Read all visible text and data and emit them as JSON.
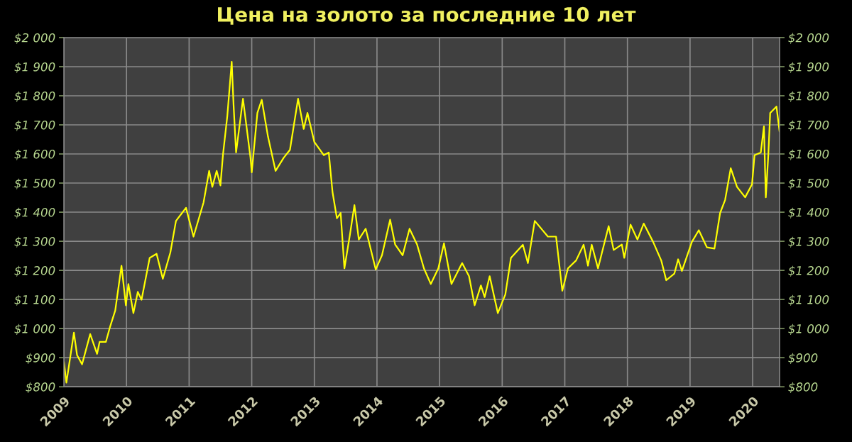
{
  "chart_data": {
    "type": "line",
    "title": "Цена на золото за последние 10 лет",
    "series": [
      {
        "color": "#ffff00",
        "x": [
          2009.0,
          2009.04,
          2009.16,
          2009.21,
          2009.29,
          2009.42,
          2009.53,
          2009.57,
          2009.67,
          2009.74,
          2009.82,
          2009.92,
          2009.99,
          2010.03,
          2010.11,
          2010.18,
          2010.24,
          2010.37,
          2010.48,
          2010.58,
          2010.7,
          2010.79,
          2010.95,
          2011.07,
          2011.23,
          2011.32,
          2011.37,
          2011.44,
          2011.5,
          2011.54,
          2011.61,
          2011.68,
          2011.71,
          2011.75,
          2011.86,
          2011.98,
          2012.0,
          2012.09,
          2012.16,
          2012.26,
          2012.38,
          2012.51,
          2012.61,
          2012.74,
          2012.83,
          2012.89,
          2013.0,
          2013.15,
          2013.23,
          2013.29,
          2013.36,
          2013.42,
          2013.48,
          2013.57,
          2013.64,
          2013.71,
          2013.82,
          2013.98,
          2014.08,
          2014.21,
          2014.29,
          2014.41,
          2014.52,
          2014.64,
          2014.75,
          2014.86,
          2014.98,
          2015.07,
          2015.19,
          2015.36,
          2015.47,
          2015.56,
          2015.66,
          2015.72,
          2015.8,
          2015.93,
          2016.05,
          2016.14,
          2016.33,
          2016.41,
          2016.52,
          2016.73,
          2016.86,
          2016.96,
          2017.05,
          2017.18,
          2017.3,
          2017.37,
          2017.43,
          2017.53,
          2017.7,
          2017.78,
          2017.91,
          2017.95,
          2018.05,
          2018.16,
          2018.26,
          2018.41,
          2018.54,
          2018.62,
          2018.75,
          2018.81,
          2018.87,
          2019.03,
          2019.14,
          2019.27,
          2019.39,
          2019.48,
          2019.56,
          2019.65,
          2019.75,
          2019.88,
          2019.99,
          2020.03,
          2020.13,
          2020.18,
          2020.21,
          2020.25,
          2020.28,
          2020.38,
          2020.43
        ],
        "values": [
          886,
          814,
          986,
          909,
          877,
          981,
          913,
          954,
          954,
          1008,
          1062,
          1216,
          1080,
          1153,
          1053,
          1126,
          1099,
          1243,
          1257,
          1171,
          1261,
          1370,
          1415,
          1316,
          1433,
          1542,
          1487,
          1542,
          1492,
          1596,
          1731,
          1917,
          1768,
          1605,
          1790,
          1587,
          1537,
          1741,
          1786,
          1659,
          1542,
          1587,
          1614,
          1790,
          1686,
          1741,
          1641,
          1596,
          1605,
          1469,
          1379,
          1397,
          1207,
          1325,
          1424,
          1306,
          1343,
          1203,
          1252,
          1374,
          1289,
          1252,
          1343,
          1289,
          1207,
          1153,
          1207,
          1293,
          1153,
          1225,
          1180,
          1080,
          1148,
          1108,
          1180,
          1053,
          1117,
          1243,
          1288,
          1225,
          1370,
          1316,
          1316,
          1130,
          1207,
          1234,
          1288,
          1216,
          1288,
          1207,
          1352,
          1270,
          1289,
          1243,
          1357,
          1306,
          1361,
          1298,
          1234,
          1166,
          1189,
          1238,
          1198,
          1298,
          1338,
          1279,
          1275,
          1397,
          1442,
          1551,
          1487,
          1451,
          1496,
          1596,
          1605,
          1695,
          1451,
          1596,
          1741,
          1763,
          1677
        ]
      }
    ],
    "xlim": [
      2009,
      2020.43
    ],
    "xticks": [
      2009,
      2010,
      2011,
      2012,
      2013,
      2014,
      2015,
      2016,
      2017,
      2018,
      2019,
      2020
    ],
    "ylim": [
      800,
      2000
    ],
    "yticks": [
      {
        "value": 800,
        "label": "$800"
      },
      {
        "value": 900,
        "label": "$900"
      },
      {
        "value": 1000,
        "label": "$1 000"
      },
      {
        "value": 1100,
        "label": "$1 100"
      },
      {
        "value": 1200,
        "label": "$1 200"
      },
      {
        "value": 1300,
        "label": "$1 300"
      },
      {
        "value": 1400,
        "label": "$1 400"
      },
      {
        "value": 1500,
        "label": "$1 500"
      },
      {
        "value": 1600,
        "label": "$1 600"
      },
      {
        "value": 1700,
        "label": "$1 700"
      },
      {
        "value": 1800,
        "label": "$1 800"
      },
      {
        "value": 1900,
        "label": "$1 900"
      },
      {
        "value": 2000,
        "label": "$2 000"
      }
    ],
    "y2lim": [
      800,
      2000
    ],
    "y2ticks": [
      {
        "value": 800,
        "label": "$800"
      },
      {
        "value": 900,
        "label": "$900"
      },
      {
        "value": 1000,
        "label": "$1 000"
      },
      {
        "value": 1100,
        "label": "$1 100"
      },
      {
        "value": 1200,
        "label": "$1 200"
      },
      {
        "value": 1300,
        "label": "$1 300"
      },
      {
        "value": 1400,
        "label": "$1 400"
      },
      {
        "value": 1500,
        "label": "$1 500"
      },
      {
        "value": 1600,
        "label": "$1 600"
      },
      {
        "value": 1700,
        "label": "$1 700"
      },
      {
        "value": 1800,
        "label": "$1 800"
      },
      {
        "value": 1900,
        "label": "$1 900"
      },
      {
        "value": 2000,
        "label": "$2 000"
      }
    ],
    "grid": true,
    "line_style": "solid",
    "legend": false
  }
}
